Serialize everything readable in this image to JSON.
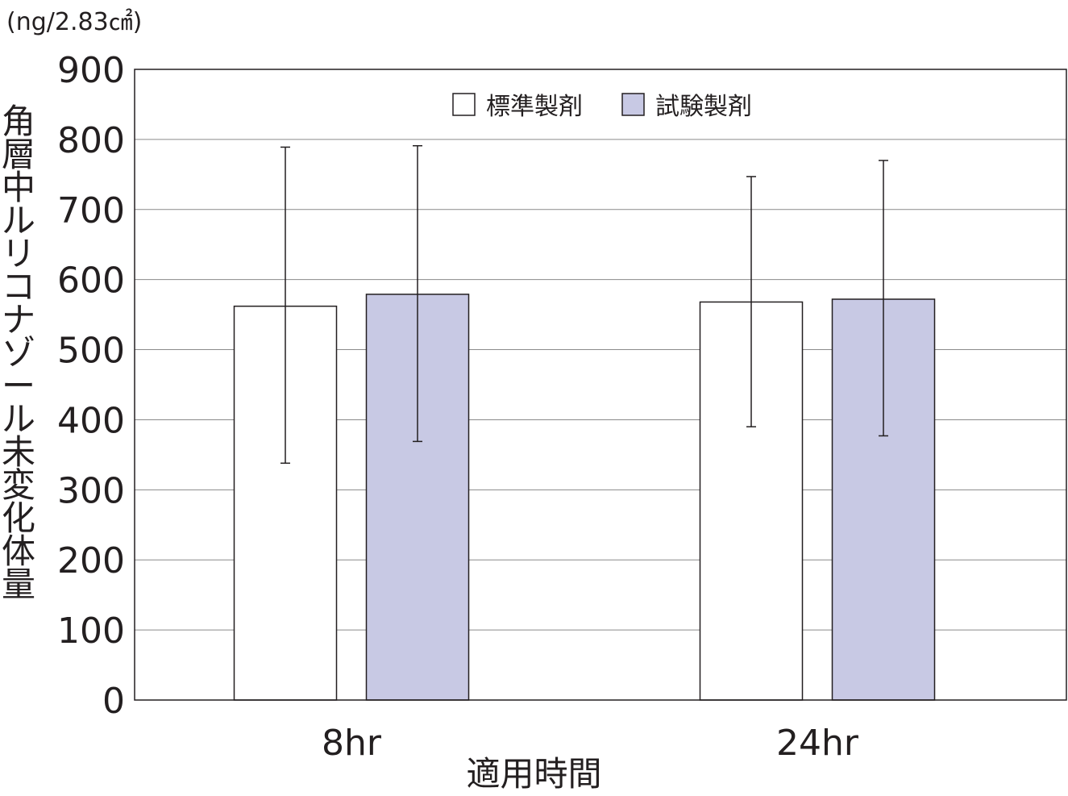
{
  "chart_data": {
    "type": "bar",
    "unit_label": "(ng/2.83㎠)",
    "ylabel": "角層中ルリコナゾール未変化体量",
    "xlabel": "適用時間",
    "categories": [
      "8hr",
      "24hr"
    ],
    "ylim": [
      0,
      900
    ],
    "yticks": [
      0,
      100,
      200,
      300,
      400,
      500,
      600,
      700,
      800,
      900
    ],
    "grid": true,
    "legend_position": "top-center",
    "series": [
      {
        "name": "標準製剤",
        "color": "#ffffff",
        "values": [
          562,
          568
        ],
        "error_low": [
          338,
          390
        ],
        "error_high": [
          789,
          747
        ]
      },
      {
        "name": "試験製剤",
        "color": "#c8c9e4",
        "values": [
          579,
          572
        ],
        "error_low": [
          369,
          377
        ],
        "error_high": [
          791,
          770
        ]
      }
    ]
  }
}
